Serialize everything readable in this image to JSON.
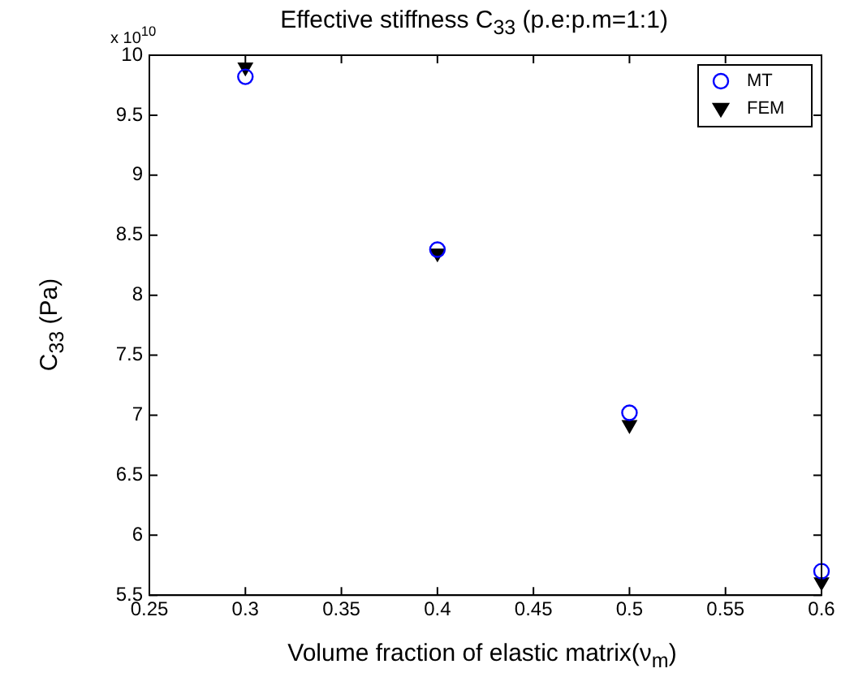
{
  "chart_data": {
    "type": "scatter",
    "title": "Effective stiffness C$_{33}$ (p.e:p.m=1:1)",
    "xlabel": "Volume fraction of elastic matrix(ν$_{m}$)",
    "ylabel": "C$_{33}$ (Pa)",
    "annotations": [
      "x 10$^{10}$"
    ],
    "x": [
      0.3,
      0.4,
      0.5,
      0.6
    ],
    "series": [
      {
        "name": "MT",
        "color": "#0000ff",
        "marker": "circle",
        "values": [
          9.82,
          8.38,
          7.02,
          5.7
        ]
      },
      {
        "name": "FEM",
        "color": "#000000",
        "marker": "triangle",
        "values": [
          9.9,
          8.35,
          6.92,
          5.61
        ]
      }
    ],
    "xlim": [
      0.25,
      0.6
    ],
    "xticks": [
      0.25,
      0.3,
      0.35,
      0.4,
      0.45,
      0.5,
      0.55,
      0.6
    ],
    "ylim": [
      5.5,
      10
    ],
    "yticks": [
      5.5,
      6,
      6.5,
      7,
      7.5,
      8,
      8.5,
      9,
      9.5,
      10
    ],
    "grid": false,
    "legend": "top right"
  }
}
